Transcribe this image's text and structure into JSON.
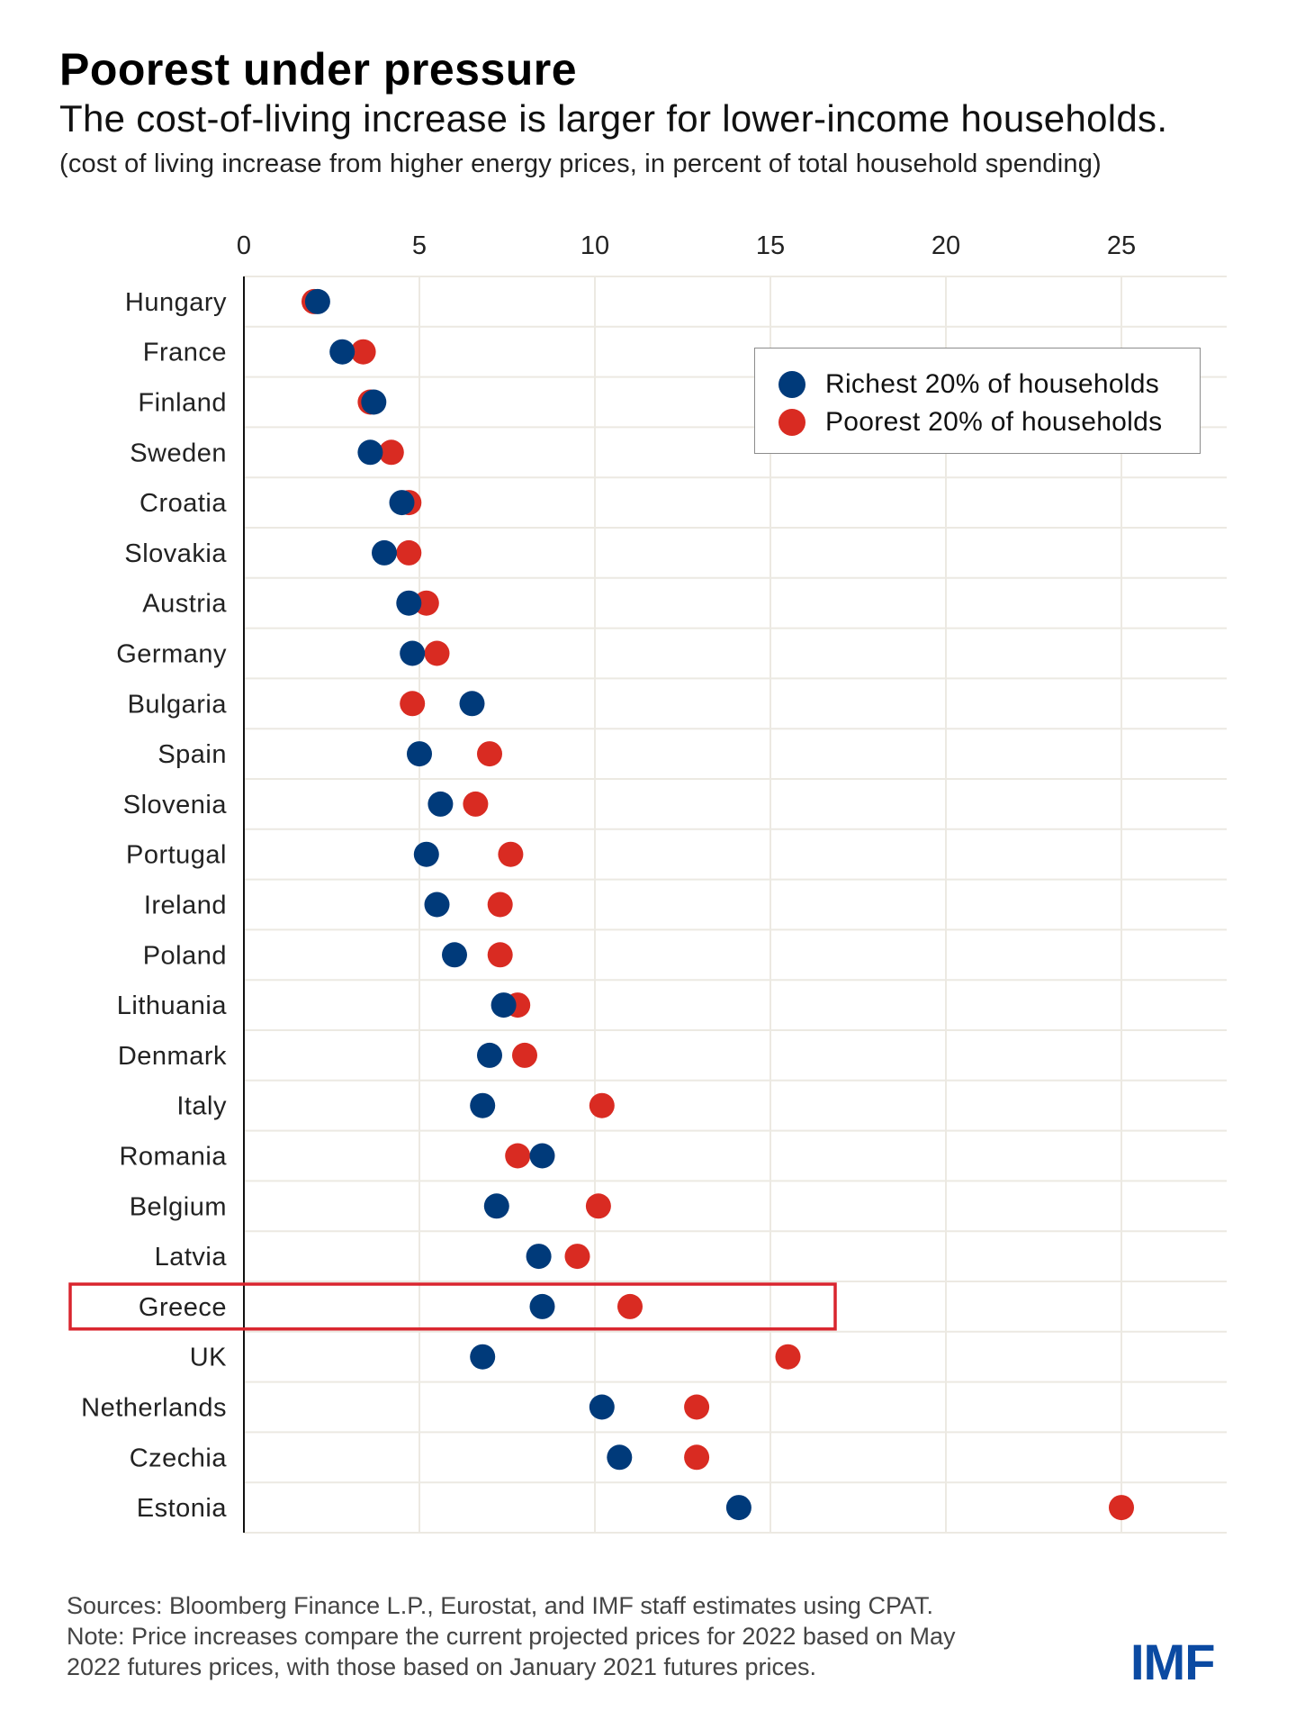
{
  "header": {
    "title": "Poorest under pressure",
    "subtitle": "The cost-of-living increase is larger for lower-income households.",
    "unit_note": "(cost of living increase from higher energy prices, in percent of total household spending)"
  },
  "colors": {
    "richest": "#003a7a",
    "poorest": "#d92b22",
    "highlight_box": "#d9252e",
    "gridline": "#ece9e2",
    "axis": "#111111",
    "logo": "#0b4aa2"
  },
  "legend": {
    "items": [
      {
        "label": "Richest 20% of households",
        "series": "richest"
      },
      {
        "label": "Poorest 20% of households",
        "series": "poorest"
      }
    ]
  },
  "chart_data": {
    "type": "scatter",
    "subtype": "dot-plot",
    "title": "Poorest under pressure",
    "subtitle": "The cost-of-living increase is larger for lower-income households.",
    "xlabel": "cost of living increase from higher energy prices, in percent of total household spending",
    "ylabel": "",
    "xlim": [
      0,
      28
    ],
    "xticks": [
      0,
      5,
      10,
      15,
      20,
      25
    ],
    "x_axis_position": "top",
    "grid": true,
    "legend_position": "top-right",
    "highlighted_category": "Greece",
    "categories": [
      "Hungary",
      "France",
      "Finland",
      "Sweden",
      "Croatia",
      "Slovakia",
      "Austria",
      "Germany",
      "Bulgaria",
      "Spain",
      "Slovenia",
      "Portugal",
      "Ireland",
      "Poland",
      "Lithuania",
      "Denmark",
      "Italy",
      "Romania",
      "Belgium",
      "Latvia",
      "Greece",
      "UK",
      "Netherlands",
      "Czechia",
      "Estonia"
    ],
    "series": [
      {
        "name": "Poorest 20% of households",
        "key": "poorest",
        "values": [
          2.0,
          3.4,
          3.6,
          4.2,
          4.7,
          4.7,
          5.2,
          5.5,
          4.8,
          7.0,
          6.6,
          7.6,
          7.3,
          7.3,
          7.8,
          8.0,
          10.2,
          7.8,
          10.1,
          9.5,
          11.0,
          15.5,
          12.9,
          12.9,
          25.0
        ]
      },
      {
        "name": "Richest 20% of households",
        "key": "richest",
        "values": [
          2.1,
          2.8,
          3.7,
          3.6,
          4.5,
          4.0,
          4.7,
          4.8,
          6.5,
          5.0,
          5.6,
          5.2,
          5.5,
          6.0,
          7.4,
          7.0,
          6.8,
          8.5,
          7.2,
          8.4,
          8.5,
          6.8,
          10.2,
          10.7,
          14.1
        ]
      }
    ]
  },
  "footer": {
    "sources": "Sources: Bloomberg Finance L.P., Eurostat, and IMF staff estimates using CPAT.",
    "note_line1": "Note: Price increases compare the current projected prices for 2022 based on May",
    "note_line2": "2022 futures prices, with those based on January 2021 futures prices."
  },
  "logo": {
    "text": "IMF"
  }
}
